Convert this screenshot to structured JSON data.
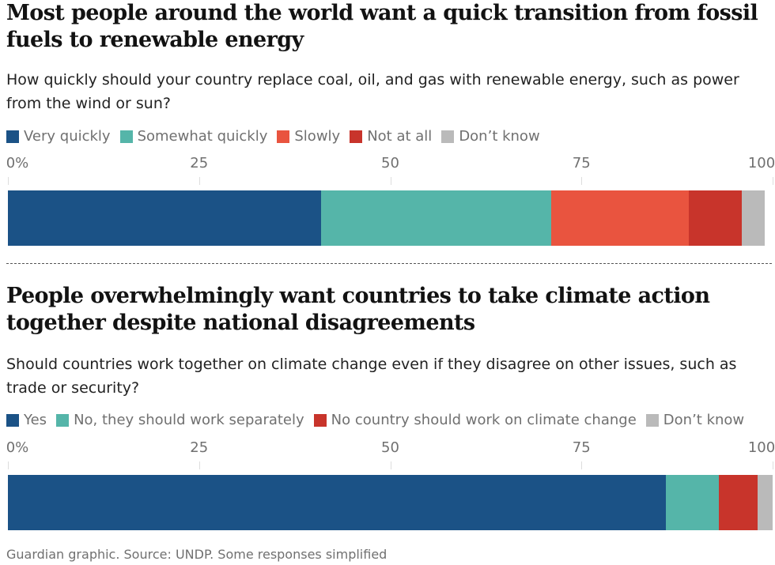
{
  "chart_data": [
    {
      "type": "bar",
      "orientation": "horizontal-stacked",
      "title": "Most people around the world want a quick transition from fossil fuels to renewable energy",
      "subtitle": "How quickly should your country replace coal, oil, and gas with renewable energy, such as power from the wind or sun?",
      "ticks": [
        "0%",
        "25",
        "50",
        "75",
        "100"
      ],
      "xlim": [
        0,
        100
      ],
      "series": [
        {
          "name": "Very quickly",
          "value": 41,
          "color": "#1b5286"
        },
        {
          "name": "Somewhat quickly",
          "value": 30,
          "color": "#55b5a9"
        },
        {
          "name": "Slowly",
          "value": 18,
          "color": "#e9543f"
        },
        {
          "name": "Not at all",
          "value": 7,
          "color": "#c8342b"
        },
        {
          "name": "Don’t know",
          "value": 3,
          "color": "#bababa"
        }
      ]
    },
    {
      "type": "bar",
      "orientation": "horizontal-stacked",
      "title": "People overwhelmingly want countries to take climate action together despite national disagreements",
      "subtitle": "Should countries work together on climate change even if they disagree on other issues, such as trade or security?",
      "ticks": [
        "0%",
        "25",
        "50",
        "75",
        "100"
      ],
      "xlim": [
        0,
        100
      ],
      "series": [
        {
          "name": "Yes",
          "value": 86,
          "color": "#1b5286"
        },
        {
          "name": "No, they should work separately",
          "value": 7,
          "color": "#55b5a9"
        },
        {
          "name": "No country should work on climate change",
          "value": 5,
          "color": "#c8342b"
        },
        {
          "name": "Don’t know",
          "value": 2,
          "color": "#bababa"
        }
      ]
    }
  ],
  "footer": "Guardian graphic. Source: UNDP. Some responses simplified"
}
